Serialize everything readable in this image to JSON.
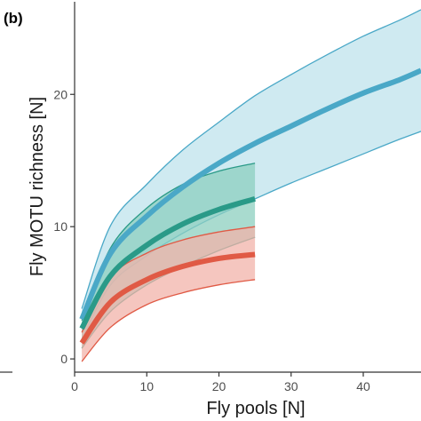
{
  "panel_label": "(b)",
  "chart_data": {
    "type": "area",
    "title": "",
    "xlabel": "Fly pools [N]",
    "ylabel": "Fly MOTU richness [N]",
    "xlim": [
      0,
      48
    ],
    "ylim": [
      -1,
      27
    ],
    "xticks": [
      0,
      10,
      20,
      30,
      40
    ],
    "yticks": [
      0,
      10,
      20
    ],
    "grid": false,
    "legend": "none",
    "series": [
      {
        "color": "#4aa8c7",
        "fill": "#bfe3ec",
        "x": [
          1,
          5,
          10,
          15,
          20,
          25,
          30,
          35,
          40,
          45,
          48
        ],
        "mean": [
          3.0,
          8.0,
          10.8,
          13.0,
          14.8,
          16.3,
          17.6,
          18.9,
          20.1,
          21.1,
          21.8
        ],
        "lower": [
          1.5,
          5.6,
          7.8,
          9.5,
          10.9,
          12.1,
          13.3,
          14.4,
          15.5,
          16.6,
          17.2
        ],
        "upper": [
          3.8,
          10.1,
          13.2,
          15.8,
          17.9,
          19.9,
          21.5,
          23.0,
          24.4,
          25.6,
          26.4
        ]
      },
      {
        "color": "#2a9a88",
        "fill": "#8ccfbf",
        "x": [
          1,
          5,
          10,
          15,
          20,
          25
        ],
        "mean": [
          2.3,
          6.3,
          8.6,
          10.2,
          11.3,
          12.1
        ],
        "lower": [
          0.8,
          3.6,
          5.6,
          7.0,
          8.2,
          9.2
        ],
        "upper": [
          2.9,
          8.4,
          11.4,
          13.2,
          14.2,
          14.8
        ]
      },
      {
        "color": "#e05a45",
        "fill": "#f2b3a9",
        "x": [
          1,
          5,
          10,
          15,
          20,
          25
        ],
        "mean": [
          1.2,
          4.3,
          6.0,
          7.0,
          7.6,
          7.9
        ],
        "lower": [
          -0.2,
          2.4,
          4.1,
          5.0,
          5.6,
          6.0
        ],
        "upper": [
          2.0,
          6.2,
          8.0,
          9.0,
          9.6,
          10.0
        ]
      }
    ]
  }
}
